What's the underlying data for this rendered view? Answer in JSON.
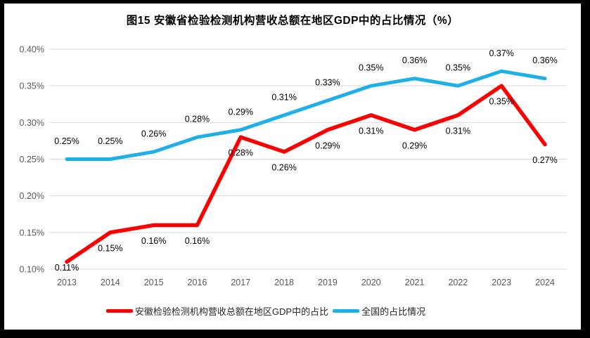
{
  "chart_title": "图15  安徽省检验检测机构营收总额在地区GDP中的占比情况（%）",
  "colors": {
    "anhui_red": "#FB0000",
    "national_blue": "#1FB0E8",
    "gridline": "#D9D9D9",
    "axis_text": "#595959",
    "data_label_text": "#000000",
    "frame": "#000000",
    "panel_background": "#FFFFFF"
  },
  "chart_data": {
    "type": "line",
    "title": "图15  安徽省检验检测机构营收总额在地区GDP中的占比情况（%）",
    "categories": [
      "2013",
      "2014",
      "2015",
      "2016",
      "2017",
      "2018",
      "2019",
      "2020",
      "2021",
      "2022",
      "2023",
      "2024"
    ],
    "series": [
      {
        "name": "安徽检验检测机构营收总额在地区GDP中的占比",
        "color": "#FB0000",
        "values": [
          0.11,
          0.15,
          0.16,
          0.16,
          0.28,
          0.26,
          0.29,
          0.31,
          0.29,
          0.31,
          0.35,
          0.27
        ],
        "labels": [
          "0.11%",
          "0.15%",
          "0.16%",
          "0.16%",
          "0.28%",
          "0.26%",
          "0.29%",
          "0.31%",
          "0.29%",
          "0.31%",
          "0.35%",
          "0.27%"
        ]
      },
      {
        "name": "全国的占比情况",
        "color": "#1FB0E8",
        "values": [
          0.25,
          0.25,
          0.26,
          0.28,
          0.29,
          0.31,
          0.33,
          0.35,
          0.36,
          0.35,
          0.37,
          0.36
        ],
        "labels": [
          "0.25%",
          "0.25%",
          "0.26%",
          "0.28%",
          "0.29%",
          "0.31%",
          "0.33%",
          "0.35%",
          "0.36%",
          "0.35%",
          "0.37%",
          "0.36%"
        ]
      }
    ],
    "y_ticks": [
      "0.40%",
      "0.35%",
      "0.30%",
      "0.25%",
      "0.20%",
      "0.15%",
      "0.10%"
    ],
    "ylim": [
      0.1,
      0.4
    ],
    "xlabel": "",
    "ylabel": "",
    "grid": true,
    "legend_position": "bottom"
  }
}
